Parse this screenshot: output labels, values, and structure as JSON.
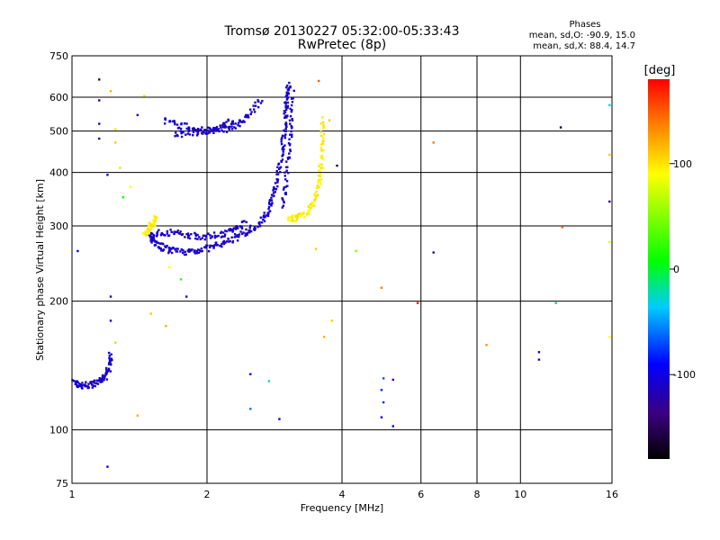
{
  "header": {
    "title_line1": "Tromsø 20130227 05:32:00-05:33:43",
    "title_line2": "RwPretec (8p)",
    "stats_title": "Phases",
    "stats_line1": "mean, sd,O: -90.9, 15.0",
    "stats_line2": "mean, sd,X: 88.4, 14.7"
  },
  "colorbar": {
    "label": "[deg]",
    "range": [
      -180,
      180
    ],
    "ticks": [
      {
        "value": 100,
        "label": "100"
      },
      {
        "value": 0,
        "label": "0"
      },
      {
        "value": -100,
        "label": "-100"
      }
    ]
  },
  "chart_data": {
    "type": "scatter",
    "title": "Tromsø 20130227 05:32:00-05:33:43",
    "subtitle": "RwPretec (8p)",
    "xlabel": "Frequency [MHz]",
    "ylabel": "Stationary phase Virtual Height [km]",
    "x_scale": "log",
    "y_scale": "log",
    "xlim": [
      1,
      16
    ],
    "ylim": [
      75,
      750
    ],
    "x_ticks": [
      1,
      2,
      4,
      6,
      8,
      10,
      16
    ],
    "y_ticks": [
      75,
      100,
      200,
      300,
      400,
      500,
      600,
      750
    ],
    "grid_x": [
      2,
      4,
      6,
      8,
      10
    ],
    "grid_y": [
      100,
      200,
      300,
      400,
      500,
      600
    ],
    "color_scale": "phase [deg], -180 to 180, rainbow",
    "series": [
      {
        "color_phase": -110,
        "traces": [
          {
            "x": [
              1.0,
              1.04,
              1.08,
              1.12,
              1.16,
              1.19,
              1.21,
              1.22
            ],
            "y": [
              130,
              127,
              127,
              128,
              130,
              134,
              140,
              150
            ]
          },
          {
            "x": [
              1.48,
              1.52,
              1.58,
              1.66,
              1.76,
              1.88,
              2.0,
              2.15,
              2.3,
              2.45,
              2.6,
              2.72
            ],
            "y": [
              290,
              275,
              268,
              263,
              261,
              262,
              266,
              272,
              280,
              290,
              302,
              318
            ]
          },
          {
            "x": [
              1.5,
              1.6,
              1.72,
              1.85,
              2.0,
              2.15,
              2.3,
              2.45
            ],
            "y": [
              285,
              290,
              288,
              285,
              283,
              287,
              295,
              305
            ]
          },
          {
            "x": [
              1.6,
              1.75,
              1.9,
              2.05,
              2.2,
              2.35,
              2.5,
              2.65
            ],
            "y": [
              530,
              515,
              505,
              500,
              505,
              520,
              550,
              600
            ]
          },
          {
            "x": [
              1.7,
              1.85,
              2.0,
              2.15,
              2.3
            ],
            "y": [
              490,
              495,
              500,
              512,
              530
            ]
          },
          {
            "x": [
              2.72,
              2.78,
              2.84,
              2.9,
              2.95,
              2.98,
              3.0,
              3.02,
              3.05
            ],
            "y": [
              320,
              340,
              370,
              410,
              460,
              510,
              560,
              610,
              640
            ]
          },
          {
            "x": [
              2.95,
              3.0,
              3.05,
              3.08,
              3.1
            ],
            "y": [
              330,
              380,
              450,
              530,
              620
            ]
          }
        ]
      },
      {
        "color_phase": 95,
        "traces": [
          {
            "x": [
              3.05,
              3.15,
              3.28,
              3.4,
              3.5,
              3.56,
              3.6,
              3.62,
              3.63
            ],
            "y": [
              312,
              313,
              318,
              330,
              350,
              380,
              420,
              470,
              540
            ]
          },
          {
            "x": [
              1.45,
              1.48,
              1.52,
              1.55
            ],
            "y": [
              285,
              295,
              305,
              315
            ]
          }
        ]
      },
      {
        "name": "",
        "color_phase": 0,
        "points": [
          {
            "x": 1.15,
            "y": 660,
            "phase": -150
          },
          {
            "x": 1.15,
            "y": 590,
            "phase": -140
          },
          {
            "x": 1.15,
            "y": 520,
            "phase": -120
          },
          {
            "x": 1.15,
            "y": 480,
            "phase": -130
          },
          {
            "x": 1.22,
            "y": 620,
            "phase": 120
          },
          {
            "x": 1.25,
            "y": 505,
            "phase": 100
          },
          {
            "x": 1.25,
            "y": 470,
            "phase": 110
          },
          {
            "x": 1.2,
            "y": 395,
            "phase": -90
          },
          {
            "x": 1.28,
            "y": 410,
            "phase": 70
          },
          {
            "x": 1.3,
            "y": 350,
            "phase": 10
          },
          {
            "x": 1.35,
            "y": 370,
            "phase": 90
          },
          {
            "x": 1.45,
            "y": 605,
            "phase": 80
          },
          {
            "x": 1.4,
            "y": 545,
            "phase": -110
          },
          {
            "x": 1.03,
            "y": 262,
            "phase": -100
          },
          {
            "x": 1.22,
            "y": 205,
            "phase": -110
          },
          {
            "x": 1.22,
            "y": 180,
            "phase": -100
          },
          {
            "x": 1.25,
            "y": 160,
            "phase": 60
          },
          {
            "x": 1.65,
            "y": 240,
            "phase": 90
          },
          {
            "x": 1.75,
            "y": 225,
            "phase": 20
          },
          {
            "x": 1.8,
            "y": 205,
            "phase": -130
          },
          {
            "x": 1.62,
            "y": 175,
            "phase": 120
          },
          {
            "x": 1.5,
            "y": 187,
            "phase": 110
          },
          {
            "x": 1.4,
            "y": 108,
            "phase": 120
          },
          {
            "x": 1.2,
            "y": 82,
            "phase": -100
          },
          {
            "x": 2.5,
            "y": 135,
            "phase": -100
          },
          {
            "x": 2.5,
            "y": 112,
            "phase": -60
          },
          {
            "x": 2.75,
            "y": 130,
            "phase": -20
          },
          {
            "x": 2.9,
            "y": 106,
            "phase": -110
          },
          {
            "x": 3.55,
            "y": 655,
            "phase": 150
          },
          {
            "x": 3.75,
            "y": 530,
            "phase": 110
          },
          {
            "x": 3.9,
            "y": 415,
            "phase": -160
          },
          {
            "x": 3.5,
            "y": 265,
            "phase": 110
          },
          {
            "x": 3.65,
            "y": 165,
            "phase": 120
          },
          {
            "x": 3.8,
            "y": 180,
            "phase": 110
          },
          {
            "x": 4.3,
            "y": 262,
            "phase": 50
          },
          {
            "x": 4.9,
            "y": 215,
            "phase": 140
          },
          {
            "x": 4.95,
            "y": 132,
            "phase": -70
          },
          {
            "x": 4.9,
            "y": 124,
            "phase": -80
          },
          {
            "x": 4.95,
            "y": 116,
            "phase": -80
          },
          {
            "x": 4.9,
            "y": 107,
            "phase": -110
          },
          {
            "x": 5.2,
            "y": 131,
            "phase": -120
          },
          {
            "x": 5.2,
            "y": 102,
            "phase": -100
          },
          {
            "x": 5.9,
            "y": 198,
            "phase": 170
          },
          {
            "x": 6.4,
            "y": 470,
            "phase": 140
          },
          {
            "x": 6.4,
            "y": 260,
            "phase": -120
          },
          {
            "x": 8.4,
            "y": 158,
            "phase": 130
          },
          {
            "x": 11.0,
            "y": 152,
            "phase": -110
          },
          {
            "x": 11.0,
            "y": 146,
            "phase": -140
          },
          {
            "x": 12.0,
            "y": 198,
            "phase": -20
          },
          {
            "x": 12.3,
            "y": 510,
            "phase": -160
          },
          {
            "x": 12.4,
            "y": 298,
            "phase": 150
          },
          {
            "x": 15.8,
            "y": 575,
            "phase": -30
          },
          {
            "x": 15.8,
            "y": 440,
            "phase": 110
          },
          {
            "x": 15.8,
            "y": 342,
            "phase": -140
          },
          {
            "x": 15.8,
            "y": 275,
            "phase": 80
          },
          {
            "x": 15.8,
            "y": 165,
            "phase": 90
          }
        ]
      }
    ]
  }
}
